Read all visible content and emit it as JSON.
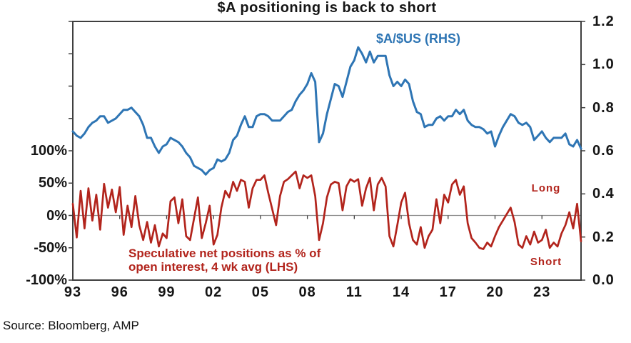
{
  "title": "$A positioning is back to short",
  "source": "Source: Bloomberg, AMP",
  "annotations": {
    "blue_series_label": "$A/$US (RHS)",
    "red_note_line1": "Speculative net positions as % of",
    "red_note_line2": "open interest, 4 wk avg (LHS)",
    "long_label": "Long",
    "short_label": "Short"
  },
  "colors": {
    "blue": "#2E75B4",
    "red": "#B2241C",
    "frame": "#3F3F3F",
    "zero_line": "#8C8C8C",
    "text": "#151515"
  },
  "chart_data": {
    "type": "line",
    "title": "$A positioning is back to short",
    "grid": "zero-line only",
    "legend_position": "annotations inside plot",
    "x_axis": {
      "tick_labels": [
        "93",
        "96",
        "99",
        "02",
        "05",
        "08",
        "11",
        "14",
        "17",
        "20",
        "23"
      ],
      "tick_years": [
        1993,
        1996,
        1999,
        2002,
        2005,
        2008,
        2011,
        2014,
        2017,
        2020,
        2023
      ],
      "start_year": 1993,
      "end_year": 2025.5,
      "ticks_on_zero_line": true
    },
    "left_axis": {
      "label": "Speculative net positions as % of open interest, 4 wk avg (LHS)",
      "unit": "%",
      "tick_labels": [
        "100%",
        "50%",
        "0%",
        "-50%",
        "-100%"
      ],
      "tick_values": [
        100,
        50,
        0,
        -50,
        -100
      ],
      "range": [
        -100,
        300
      ],
      "tick_step": 50
    },
    "right_axis": {
      "label": "$A/$US (RHS)",
      "tick_labels": [
        "1.2",
        "1.0",
        "0.8",
        "0.6",
        "0.4",
        "0.2",
        "0.0"
      ],
      "tick_values": [
        1.2,
        1.0,
        0.8,
        0.6,
        0.4,
        0.2,
        0.0
      ],
      "range": [
        0,
        1.2
      ],
      "tick_step": 0.2
    },
    "x_start": 1993.0,
    "x_step": 0.25,
    "series": [
      {
        "name": "$A/$US (RHS)",
        "axis": "right",
        "color": "#2E75B4",
        "values": [
          0.69,
          0.67,
          0.66,
          0.68,
          0.71,
          0.73,
          0.74,
          0.76,
          0.76,
          0.73,
          0.74,
          0.75,
          0.77,
          0.79,
          0.79,
          0.8,
          0.78,
          0.76,
          0.72,
          0.66,
          0.66,
          0.62,
          0.59,
          0.62,
          0.63,
          0.66,
          0.65,
          0.64,
          0.62,
          0.59,
          0.57,
          0.53,
          0.52,
          0.51,
          0.49,
          0.51,
          0.52,
          0.56,
          0.55,
          0.56,
          0.59,
          0.65,
          0.67,
          0.72,
          0.76,
          0.71,
          0.71,
          0.76,
          0.77,
          0.77,
          0.76,
          0.74,
          0.74,
          0.74,
          0.76,
          0.78,
          0.79,
          0.83,
          0.86,
          0.88,
          0.91,
          0.96,
          0.92,
          0.64,
          0.68,
          0.77,
          0.84,
          0.91,
          0.9,
          0.85,
          0.92,
          0.99,
          1.02,
          1.08,
          1.05,
          1.01,
          1.06,
          1.01,
          1.04,
          1.04,
          1.04,
          0.95,
          0.9,
          0.92,
          0.9,
          0.93,
          0.91,
          0.83,
          0.78,
          0.77,
          0.71,
          0.72,
          0.72,
          0.75,
          0.76,
          0.74,
          0.76,
          0.76,
          0.79,
          0.77,
          0.79,
          0.74,
          0.72,
          0.71,
          0.71,
          0.7,
          0.68,
          0.69,
          0.62,
          0.67,
          0.71,
          0.74,
          0.77,
          0.76,
          0.73,
          0.72,
          0.73,
          0.71,
          0.65,
          0.67,
          0.69,
          0.66,
          0.64,
          0.66,
          0.66,
          0.66,
          0.68,
          0.63,
          0.62,
          0.65,
          0.61
        ]
      },
      {
        "name": "Speculative net positions as % of open interest, 4 wk avg (LHS)",
        "axis": "left",
        "color": "#B2241C",
        "values": [
          18,
          -34,
          38,
          -20,
          42,
          -8,
          32,
          -22,
          49,
          12,
          40,
          5,
          44,
          -30,
          15,
          -18,
          30,
          -15,
          -38,
          -10,
          -42,
          -15,
          -48,
          -28,
          -35,
          22,
          28,
          -12,
          25,
          -32,
          -38,
          -5,
          28,
          -35,
          -12,
          15,
          -45,
          -30,
          12,
          38,
          28,
          52,
          38,
          55,
          52,
          12,
          42,
          55,
          55,
          62,
          35,
          10,
          -15,
          30,
          52,
          56,
          62,
          68,
          42,
          62,
          58,
          62,
          30,
          -38,
          -12,
          28,
          48,
          52,
          50,
          8,
          45,
          56,
          52,
          56,
          15,
          42,
          58,
          8,
          48,
          58,
          45,
          -32,
          -48,
          -15,
          20,
          35,
          -12,
          -38,
          -45,
          -18,
          -50,
          -32,
          -22,
          25,
          -12,
          32,
          20,
          48,
          55,
          32,
          45,
          -12,
          -35,
          -42,
          -50,
          -52,
          -42,
          -48,
          -32,
          -18,
          -8,
          2,
          12,
          -10,
          -45,
          -50,
          -32,
          -45,
          -25,
          -42,
          -38,
          -22,
          -50,
          -42,
          -48,
          -28,
          -15,
          5,
          -20,
          18,
          -40
        ]
      }
    ]
  }
}
